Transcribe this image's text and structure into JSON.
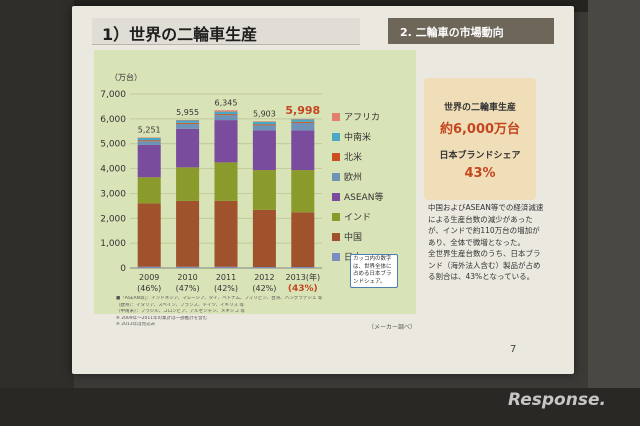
{
  "slide": {
    "title": "1）世界の二輪車生産",
    "section": "2. 二輪車の市場動向",
    "page_number": "7",
    "source": "（メーカー調べ）"
  },
  "info_box": {
    "title": "世界の二輪車生産",
    "total": "約6,000万台",
    "share_title": "日本ブランドシェア",
    "share": "43%"
  },
  "description": [
    "中国およびASEAN等での経済減速による生産台数の減少があったが、インドで約110万台の増加があり、全体で微増となった。",
    "全世界生産台数のうち、日本ブランド（海外法人含む）製品が占める割合は、43%となっている。"
  ],
  "callout": "カッコ内の数字は、世界全体に占める日本ブランドシェア。",
  "footnotes": [
    "■「ASEAN等」：インドネシア、マレーシア、タイ、ベトナム、フィリピン、台湾、バングラデシュ 等",
    "（欧州）：イタリア、スペイン、フランス、ドイツ、イギリス 等",
    "（中南米）：ブラジル、コロンビア、アルゼンチン、メキシコ 等",
    "※ 2009年〜2011年の集計は一部推計を含む",
    "※ 2013年は見込み"
  ],
  "watermark": "Response.",
  "chart_data": {
    "type": "bar",
    "stacked": true,
    "ylabel": "（万台）",
    "ylim": [
      0,
      7000
    ],
    "yticks": [
      "0",
      "1,000",
      "2,000",
      "3,000",
      "4,000",
      "5,000",
      "6,000",
      "7,000"
    ],
    "yticks_values": [
      0,
      1000,
      2000,
      3000,
      4000,
      5000,
      6000,
      7000
    ],
    "categories": [
      "2009",
      "2010",
      "2011",
      "2012",
      "2013"
    ],
    "category_labels": [
      "2009",
      "2010",
      "2011",
      "2012",
      "2013(年)"
    ],
    "share_labels": [
      "(46%)",
      "(47%)",
      "(42%)",
      "(42%)",
      "(43%)"
    ],
    "totals": [
      "5,251",
      "5,955",
      "6,345",
      "5,903",
      "5,998"
    ],
    "highlight_index": 4,
    "legend_position": "right",
    "series": [
      {
        "name": "日本",
        "color": "#7b8cc0",
        "values": [
          50,
          50,
          50,
          40,
          40
        ]
      },
      {
        "name": "中国",
        "color": "#a0522d",
        "values": [
          2550,
          2650,
          2650,
          2300,
          2200
        ]
      },
      {
        "name": "インド",
        "color": "#8a9a2b",
        "values": [
          1050,
          1350,
          1550,
          1600,
          1700
        ]
      },
      {
        "name": "ASEAN等",
        "color": "#7a4c9e",
        "values": [
          1300,
          1550,
          1700,
          1600,
          1600
        ]
      },
      {
        "name": "欧州",
        "color": "#6f93b7",
        "values": [
          150,
          200,
          200,
          200,
          300
        ]
      },
      {
        "name": "北米",
        "color": "#cc4e1f",
        "values": [
          40,
          40,
          40,
          40,
          40
        ]
      },
      {
        "name": "中南米",
        "color": "#4aa8c4",
        "values": [
          100,
          100,
          100,
          100,
          100
        ]
      },
      {
        "name": "アフリカ",
        "color": "#e07f6c",
        "values": [
          11,
          15,
          55,
          23,
          18
        ]
      }
    ],
    "colors": {
      "accent": "#c4461f",
      "callout_border": "#4a7fb0"
    }
  }
}
